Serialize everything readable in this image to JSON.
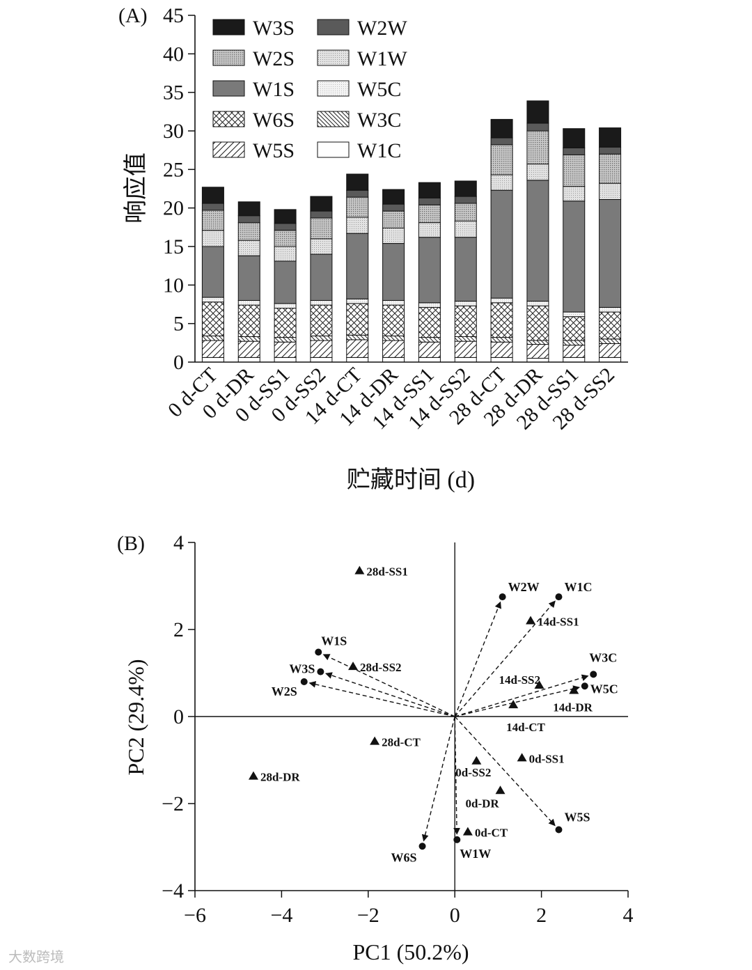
{
  "chart_data": [
    {
      "type": "bar",
      "stacked": true,
      "panel_label": "(A)",
      "ylabel": "响应值",
      "xlabel": "贮藏时间 (d)",
      "ylim": [
        0,
        45
      ],
      "yticks": [
        0,
        5,
        10,
        15,
        20,
        25,
        30,
        35,
        40,
        45
      ],
      "categories": [
        "0 d-CT",
        "0 d-DR",
        "0 d-SS1",
        "0 d-SS2",
        "14 d-CT",
        "14 d-DR",
        "14 d-SS1",
        "14 d-SS2",
        "28 d-CT",
        "28 d-DR",
        "28 d-SS1",
        "28 d-SS2"
      ],
      "legend_order": [
        "W3S",
        "W2W",
        "W2S",
        "W1W",
        "W1S",
        "W5C",
        "W6S",
        "W3C",
        "W5S",
        "W1C"
      ],
      "series": [
        {
          "name": "W1C",
          "fill": "white",
          "values": [
            0.6,
            0.6,
            0.6,
            0.6,
            0.6,
            0.6,
            0.6,
            0.6,
            0.6,
            0.5,
            0.6,
            0.6
          ]
        },
        {
          "name": "W5S",
          "fill": "fdiag",
          "values": [
            2.2,
            2.1,
            2.0,
            2.2,
            2.3,
            2.2,
            2.0,
            2.1,
            2.0,
            1.8,
            1.6,
            1.8
          ]
        },
        {
          "name": "W3C",
          "fill": "bdiag",
          "values": [
            0.6,
            0.6,
            0.6,
            0.6,
            0.6,
            0.6,
            0.6,
            0.6,
            0.6,
            0.5,
            0.6,
            0.6
          ]
        },
        {
          "name": "W6S",
          "fill": "cross",
          "values": [
            4.4,
            4.1,
            3.8,
            4.0,
            4.1,
            4.0,
            3.9,
            4.0,
            4.5,
            4.5,
            3.1,
            3.5
          ]
        },
        {
          "name": "W5C",
          "fill": "light1",
          "values": [
            0.6,
            0.6,
            0.6,
            0.6,
            0.6,
            0.6,
            0.6,
            0.6,
            0.6,
            0.6,
            0.6,
            0.6
          ]
        },
        {
          "name": "W1S",
          "fill": "gray",
          "values": [
            6.6,
            5.8,
            5.5,
            6.0,
            8.5,
            7.4,
            8.5,
            8.3,
            14.0,
            15.7,
            14.4,
            14.0
          ]
        },
        {
          "name": "W1W",
          "fill": "light2",
          "values": [
            2.1,
            2.0,
            1.9,
            2.0,
            2.1,
            2.0,
            1.9,
            2.1,
            2.0,
            2.1,
            1.9,
            2.1
          ]
        },
        {
          "name": "W2S",
          "fill": "dots",
          "values": [
            2.6,
            2.3,
            2.1,
            2.7,
            2.6,
            2.2,
            2.3,
            2.3,
            3.9,
            4.3,
            4.1,
            3.8
          ]
        },
        {
          "name": "W2W",
          "fill": "dgray",
          "values": [
            0.9,
            0.9,
            0.9,
            0.9,
            0.9,
            0.9,
            0.9,
            0.9,
            0.9,
            1.0,
            0.9,
            0.9
          ]
        },
        {
          "name": "W3S",
          "fill": "black",
          "values": [
            2.1,
            1.8,
            1.8,
            1.9,
            2.1,
            1.9,
            2.0,
            2.0,
            2.4,
            2.9,
            2.5,
            2.5
          ]
        }
      ]
    },
    {
      "type": "scatter",
      "panel_label": "(B)",
      "xlabel": "PC1 (50.2%)",
      "ylabel": "PC2 (29.4%)",
      "xlim": [
        -6,
        4
      ],
      "ylim": [
        -4,
        4
      ],
      "xticks": [
        -6,
        -4,
        -2,
        0,
        2,
        4
      ],
      "yticks": [
        -4,
        -2,
        0,
        2,
        4
      ],
      "xtick_labels": [
        "−6",
        "−4",
        "−2",
        "0",
        "2",
        "4"
      ],
      "ytick_labels": [
        "−4",
        "−2",
        "0",
        "2",
        "4"
      ],
      "samples": [
        {
          "label": "28d-SS1",
          "x": -2.2,
          "y": 3.35
        },
        {
          "label": "14d-SS1",
          "x": 1.75,
          "y": 2.2
        },
        {
          "label": "28d-SS2",
          "x": -2.35,
          "y": 1.15
        },
        {
          "label": "14d-SS2",
          "x": 1.95,
          "y": 0.72
        },
        {
          "label": "14d-DR",
          "x": 2.75,
          "y": 0.6
        },
        {
          "label": "14d-CT",
          "x": 1.35,
          "y": 0.27
        },
        {
          "label": "28d-CT",
          "x": -1.85,
          "y": -0.57
        },
        {
          "label": "0d-SS1",
          "x": 1.55,
          "y": -0.95
        },
        {
          "label": "0d-SS2",
          "x": 0.5,
          "y": -1.02
        },
        {
          "label": "28d-DR",
          "x": -4.65,
          "y": -1.37
        },
        {
          "label": "0d-DR",
          "x": 1.05,
          "y": -1.7
        },
        {
          "label": "0d-CT",
          "x": 0.3,
          "y": -2.65
        }
      ],
      "loadings": [
        {
          "label": "W2W",
          "x": 1.1,
          "y": 2.75
        },
        {
          "label": "W1C",
          "x": 2.4,
          "y": 2.75
        },
        {
          "label": "W1S",
          "x": -3.15,
          "y": 1.48
        },
        {
          "label": "W3S",
          "x": -3.1,
          "y": 1.03
        },
        {
          "label": "W2S",
          "x": -3.48,
          "y": 0.8
        },
        {
          "label": "W3C",
          "x": 3.2,
          "y": 0.97
        },
        {
          "label": "W5C",
          "x": 3.0,
          "y": 0.7
        },
        {
          "label": "W5S",
          "x": 2.4,
          "y": -2.6
        },
        {
          "label": "W6S",
          "x": -0.75,
          "y": -2.98
        },
        {
          "label": "W1W",
          "x": 0.05,
          "y": -2.83
        }
      ]
    }
  ],
  "watermark": "大数跨境"
}
